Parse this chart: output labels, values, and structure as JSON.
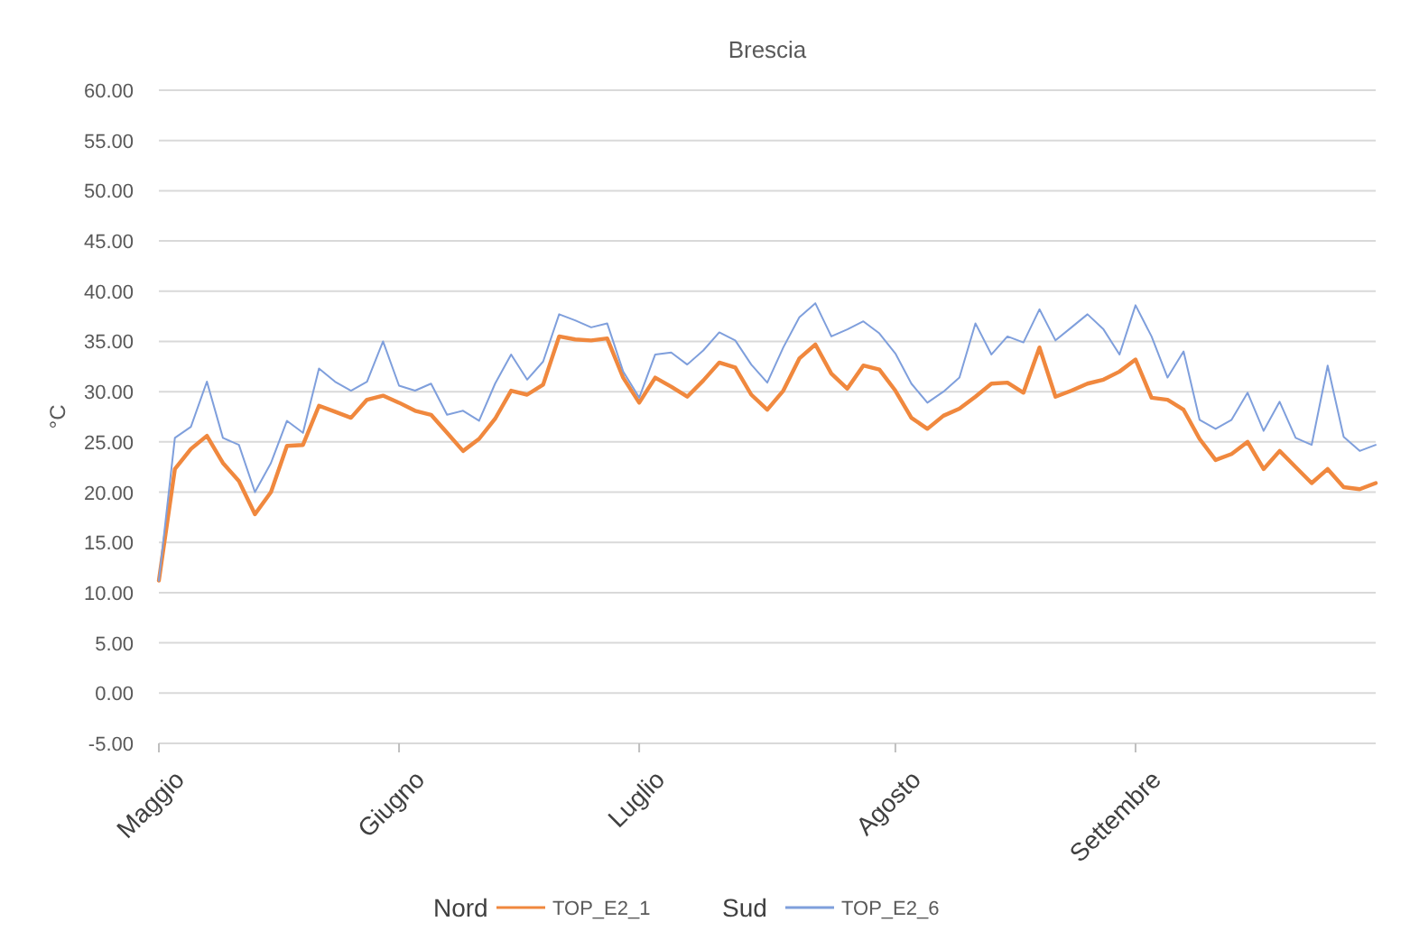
{
  "chart_data": {
    "type": "line",
    "title": "Brescia",
    "ylabel": "°C",
    "annotations": [
      "Nord",
      "Sud"
    ],
    "legend": "bottom",
    "grid": "y",
    "line_style": "solid",
    "marker": "none",
    "categories": [
      "Maggio",
      null,
      null,
      null,
      null,
      null,
      null,
      null,
      null,
      null,
      null,
      null,
      null,
      null,
      null,
      "Giugno",
      null,
      null,
      null,
      null,
      null,
      null,
      null,
      null,
      null,
      null,
      null,
      null,
      null,
      null,
      "Luglio",
      null,
      null,
      null,
      null,
      null,
      null,
      null,
      null,
      null,
      null,
      null,
      null,
      null,
      null,
      null,
      "Agosto",
      null,
      null,
      null,
      null,
      null,
      null,
      null,
      null,
      null,
      null,
      null,
      null,
      null,
      null,
      "Settembre",
      null,
      null,
      null,
      null,
      null,
      null,
      null,
      null,
      null,
      null,
      null,
      null,
      null,
      null,
      null
    ],
    "ylim": [
      -5,
      60
    ],
    "yticks": [
      {
        "value": -5,
        "label": "-5.00"
      },
      {
        "value": 0,
        "label": "0.00"
      },
      {
        "value": 5,
        "label": "5.00"
      },
      {
        "value": 10,
        "label": "10.00"
      },
      {
        "value": 15,
        "label": "15.00"
      },
      {
        "value": 20,
        "label": "20.00"
      },
      {
        "value": 25,
        "label": "25.00"
      },
      {
        "value": 30,
        "label": "30.00"
      },
      {
        "value": 35,
        "label": "35.00"
      },
      {
        "value": 40,
        "label": "40.00"
      },
      {
        "value": 45,
        "label": "45.00"
      },
      {
        "value": 50,
        "label": "50.00"
      },
      {
        "value": 55,
        "label": "55.00"
      },
      {
        "value": 60,
        "label": "60.00"
      }
    ],
    "series": [
      {
        "name": "TOP_E2_1",
        "color": "#f0883e",
        "values": [
          11.2,
          22.3,
          24.3,
          25.6,
          22.9,
          21.1,
          17.8,
          20.0,
          24.6,
          24.7,
          28.6,
          28.0,
          27.4,
          29.2,
          29.6,
          28.9,
          28.1,
          27.7,
          25.9,
          24.1,
          25.3,
          27.3,
          30.1,
          29.7,
          30.7,
          35.5,
          35.2,
          35.1,
          35.3,
          31.4,
          28.9,
          31.4,
          30.5,
          29.5,
          31.1,
          32.9,
          32.4,
          29.7,
          28.2,
          30.1,
          33.3,
          34.7,
          31.8,
          30.3,
          32.6,
          32.2,
          30.1,
          27.4,
          26.3,
          27.6,
          28.3,
          29.5,
          30.8,
          30.9,
          29.9,
          34.4,
          29.5,
          30.1,
          30.8,
          31.2,
          32.0,
          33.2,
          29.4,
          29.2,
          28.2,
          25.3,
          23.2,
          23.8,
          25.0,
          22.3,
          24.1,
          22.5,
          20.9,
          22.3,
          20.5,
          20.3,
          20.9
        ]
      },
      {
        "name": "TOP_E2_6",
        "color": "#7f9fdc",
        "values": [
          11.2,
          25.4,
          26.5,
          31.0,
          25.4,
          24.7,
          20.0,
          22.9,
          27.1,
          25.9,
          32.3,
          31.0,
          30.1,
          31.0,
          35.0,
          30.6,
          30.1,
          30.8,
          27.7,
          28.1,
          27.1,
          30.8,
          33.7,
          31.2,
          33.0,
          37.7,
          37.1,
          36.4,
          36.8,
          32.0,
          29.4,
          33.7,
          33.9,
          32.7,
          34.1,
          35.9,
          35.1,
          32.7,
          30.9,
          34.4,
          37.4,
          38.8,
          35.5,
          36.2,
          37.0,
          35.8,
          33.8,
          30.8,
          28.9,
          30.0,
          31.4,
          36.8,
          33.7,
          35.5,
          34.9,
          38.2,
          35.1,
          36.4,
          37.7,
          36.2,
          33.7,
          38.6,
          35.5,
          31.4,
          34.0,
          27.2,
          26.3,
          27.2,
          29.9,
          26.1,
          29.0,
          25.4,
          24.7,
          32.6,
          25.5,
          24.1,
          24.7
        ]
      }
    ]
  }
}
